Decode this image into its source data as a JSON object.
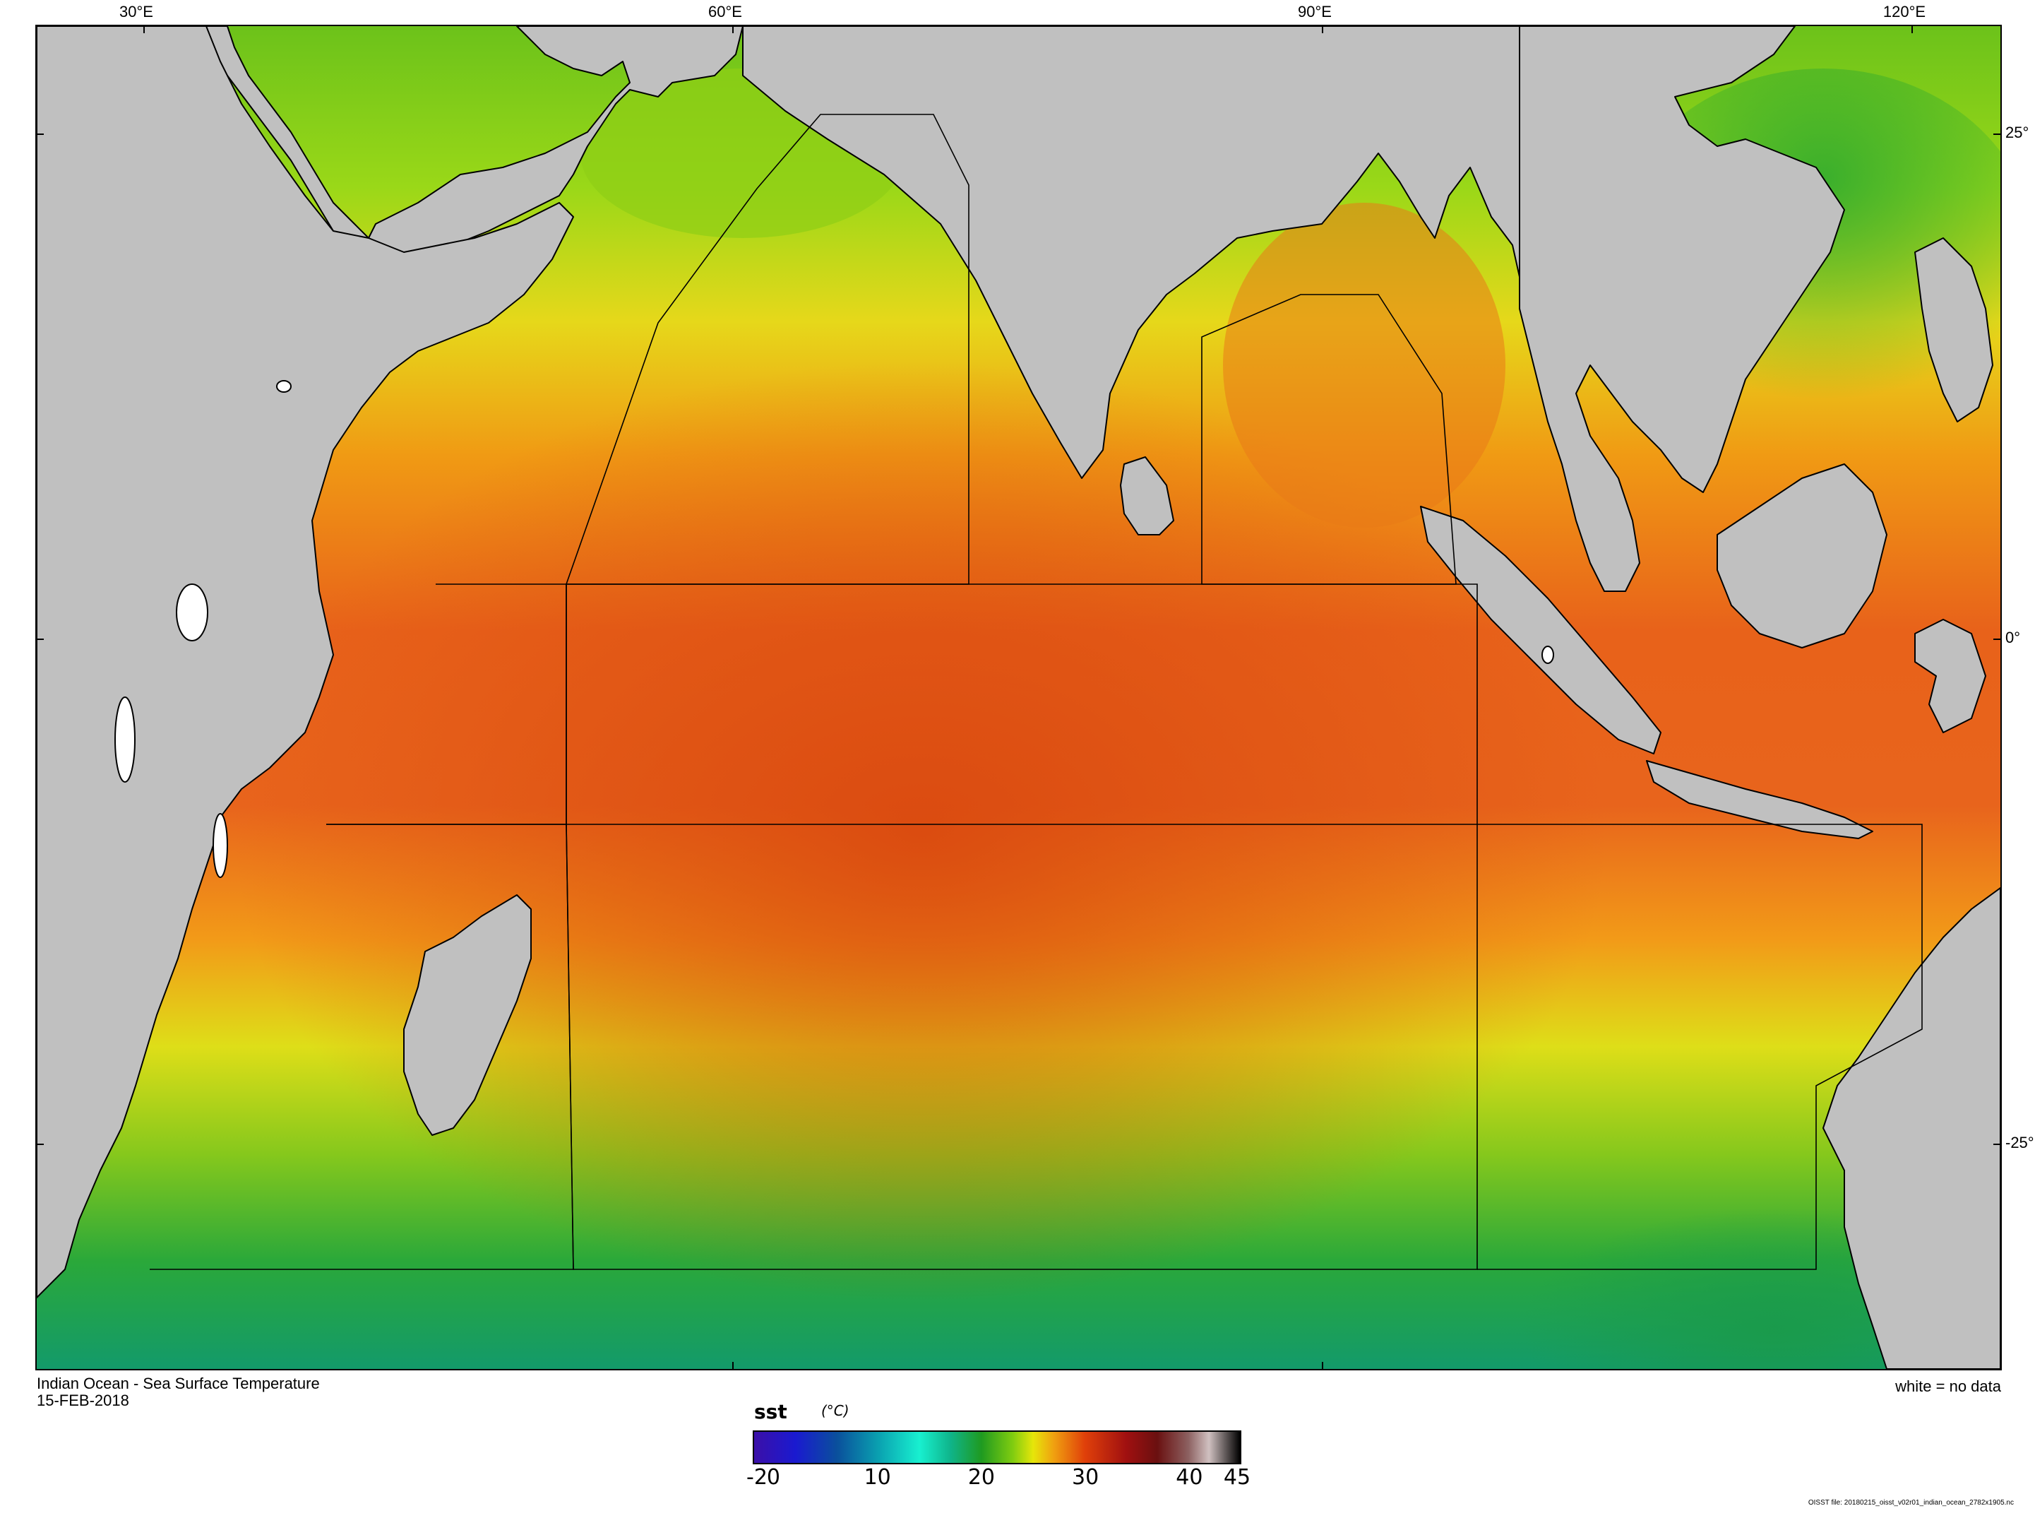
{
  "map": {
    "title": "Indian Ocean - Sea Surface Temperature",
    "date": "15-FEB-2018",
    "no_data_note": "white = no data",
    "file_note": "OISST file: 20180215_oisst_v02r01_indian_ocean_2782x1905.nc",
    "lon_ticks": [
      "30°E",
      "60°E",
      "90°E",
      "120°E"
    ],
    "lat_ticks": [
      "25°",
      "0°",
      "-25°"
    ],
    "colors": {
      "land": "#c0c0c0",
      "coast": "#000000",
      "no_data": "#ffffff"
    }
  },
  "colorbar": {
    "variable": "sst",
    "unit": "(°C)",
    "min": -2,
    "max": 45,
    "tick_labels": [
      "-2",
      "0",
      "10",
      "20",
      "30",
      "40",
      "45"
    ],
    "tick_values": [
      -2,
      0,
      10,
      20,
      30,
      40,
      45
    ],
    "stops": [
      {
        "v": -2,
        "c": "#3b0fa8"
      },
      {
        "v": 2,
        "c": "#1a1ad0"
      },
      {
        "v": 6,
        "c": "#0a4f9c"
      },
      {
        "v": 10,
        "c": "#0aa0b0"
      },
      {
        "v": 14,
        "c": "#18f0d0"
      },
      {
        "v": 17,
        "c": "#0fb48a"
      },
      {
        "v": 20,
        "c": "#1f9a20"
      },
      {
        "v": 23,
        "c": "#7fcc10"
      },
      {
        "v": 25,
        "c": "#e6e60a"
      },
      {
        "v": 27,
        "c": "#f0a010"
      },
      {
        "v": 30,
        "c": "#e0400a"
      },
      {
        "v": 34,
        "c": "#a01010"
      },
      {
        "v": 37,
        "c": "#6a1010"
      },
      {
        "v": 40,
        "c": "#8c6060"
      },
      {
        "v": 42,
        "c": "#d0c0c0"
      },
      {
        "v": 45,
        "c": "#000000"
      }
    ]
  }
}
